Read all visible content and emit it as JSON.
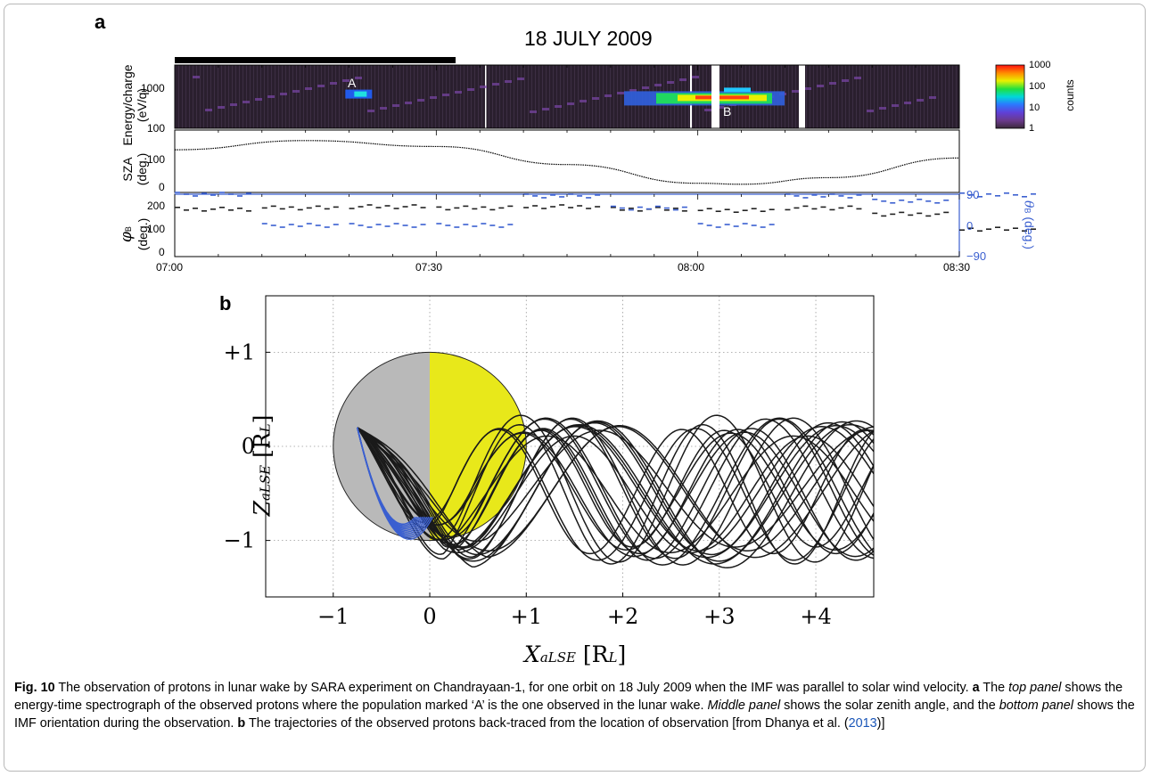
{
  "figure": {
    "panel_a_label": "a",
    "panel_b_label": "b",
    "title": "18 JULY 2009",
    "spectrogram": {
      "ylabel_line1": "Energy/charge",
      "ylabel_line2": "(eV/q)",
      "yticks": [
        "1000",
        "100"
      ],
      "annotations": [
        "A",
        "B"
      ],
      "colorbar": {
        "ticks": [
          "1000",
          "100",
          "10",
          "1"
        ],
        "label": "counts"
      }
    },
    "sza": {
      "ylabel_line1": "SZA",
      "ylabel_line2": "(deg.)",
      "yticks": [
        "100",
        "0"
      ]
    },
    "imf": {
      "ylabel_left_line1": "φ",
      "ylabel_left_sub": "B",
      "ylabel_left_line2": "(deg.)",
      "ylabel_right": "θ",
      "ylabel_right_sub": "B",
      "ylabel_right_unit": "(deg.)",
      "yticks_left": [
        "200",
        "100",
        "0"
      ],
      "yticks_right": [
        "90",
        "0",
        "−90"
      ]
    },
    "time_ticks": [
      "07:00",
      "07:30",
      "08:00",
      "08:30"
    ],
    "trajectory": {
      "xlabel_main": "X",
      "xlabel_sub": "aLSE",
      "xlabel_unit": "[R",
      "xlabel_unit_sub": "L",
      "xlabel_unit_end": "]",
      "ylabel_main": "Z",
      "ylabel_sub": "aLSE",
      "ylabel_unit": "[R",
      "ylabel_unit_sub": "L",
      "ylabel_unit_end": "]",
      "xticks": [
        "−1",
        "0",
        "+1",
        "+2",
        "+3",
        "+4"
      ],
      "yticks": [
        "+1",
        "0",
        "−1"
      ]
    }
  },
  "chart_data": [
    {
      "type": "heatmap",
      "title": "18 JULY 2009",
      "ylabel": "Energy/charge (eV/q)",
      "ylim": [
        100,
        3000
      ],
      "yscale": "log",
      "x_range": [
        "07:00",
        "08:30"
      ],
      "colorbar_range": [
        1,
        1000
      ],
      "colorbar_label": "counts",
      "features": [
        {
          "label": "A",
          "time": "07:21",
          "energy": 600
        },
        {
          "label": "B",
          "time": "08:04",
          "energy": 500
        }
      ]
    },
    {
      "type": "line",
      "ylabel": "SZA (deg.)",
      "ylim": [
        -10,
        180
      ],
      "x": [
        "07:00",
        "07:15",
        "07:30",
        "07:45",
        "08:00",
        "08:05",
        "08:15",
        "08:30"
      ],
      "values": [
        120,
        148,
        130,
        75,
        18,
        15,
        35,
        95
      ]
    },
    {
      "type": "scatter",
      "ylabel": "φB (deg.)",
      "ylabel_right": "θB (deg.)",
      "ylim": [
        0,
        250
      ],
      "series": [
        {
          "name": "φB",
          "x": [
            "07:00",
            "07:10",
            "07:20",
            "07:30",
            "07:40",
            "07:50",
            "08:00",
            "08:10",
            "08:20",
            "08:30"
          ],
          "values": [
            190,
            195,
            200,
            195,
            200,
            190,
            185,
            195,
            170,
            110
          ]
        },
        {
          "name": "θB",
          "x": [
            "07:00",
            "07:10",
            "07:20",
            "07:30",
            "07:40",
            "07:50",
            "08:00",
            "08:10",
            "08:20",
            "08:30"
          ],
          "values": [
            90,
            0,
            0,
            0,
            85,
            50,
            0,
            85,
            70,
            88
          ]
        }
      ]
    },
    {
      "type": "line",
      "xlabel": "XaLSE [RL]",
      "ylabel": "ZaLSE [RL]",
      "xlim": [
        -1.7,
        4.6
      ],
      "ylim": [
        -1.6,
        1.6
      ],
      "grid": true,
      "moon": {
        "center": [
          0,
          0
        ],
        "radius": 1
      },
      "start_point": [
        -0.75,
        0.2
      ]
    }
  ],
  "caption": {
    "fig_label": "Fig. 10",
    "text1": "The observation of protons in lunar wake by SARA experiment on Chandrayaan-1, for one orbit on 18 July 2009 when the IMF was parallel to solar wind velocity.",
    "a_label": "a",
    "text2": "The",
    "top_panel": "top panel",
    "text3": "shows the energy-time spectrograph of the observed protons where the population marked ‘A’ is the one observed in the lunar wake.",
    "middle_panel": "Middle panel",
    "text4": "shows the solar zenith angle, and the",
    "bottom_panel": "bottom panel",
    "text5": "shows the IMF orientation during the observation.",
    "b_label": "b",
    "text6": "The trajectories of the observed protons back-traced from the location of observation [from Dhanya et al. (",
    "ref_year": "2013",
    "text7": ")]"
  }
}
